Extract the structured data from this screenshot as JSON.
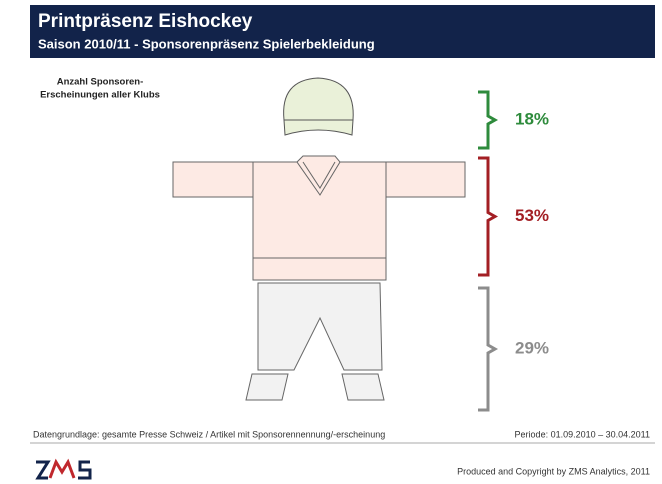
{
  "chart_data": {
    "type": "pictogram",
    "title": "Printpräsenz Eishockey",
    "subtitle": "Saison 2010/11 - Sponsorenpräsenz Spielerbekleidung",
    "label_lines": [
      "Anzahl Sponsoren-",
      "Erscheinungen aller Klubs"
    ],
    "values": [
      18,
      53,
      29
    ],
    "value_labels": [
      "18%",
      "53%",
      "29%"
    ],
    "colors": [
      "#2e8b3c",
      "#a31f24",
      "#8c8c8c"
    ],
    "source": "Datengrundlage: gesamte Presse Schweiz / Artikel mit Sponsorennennung/-erscheinung",
    "period": "Periode: 01.09.2010 – 30.04.2011",
    "copyright": "Produced and Copyright by ZMS Analytics, 2011"
  }
}
